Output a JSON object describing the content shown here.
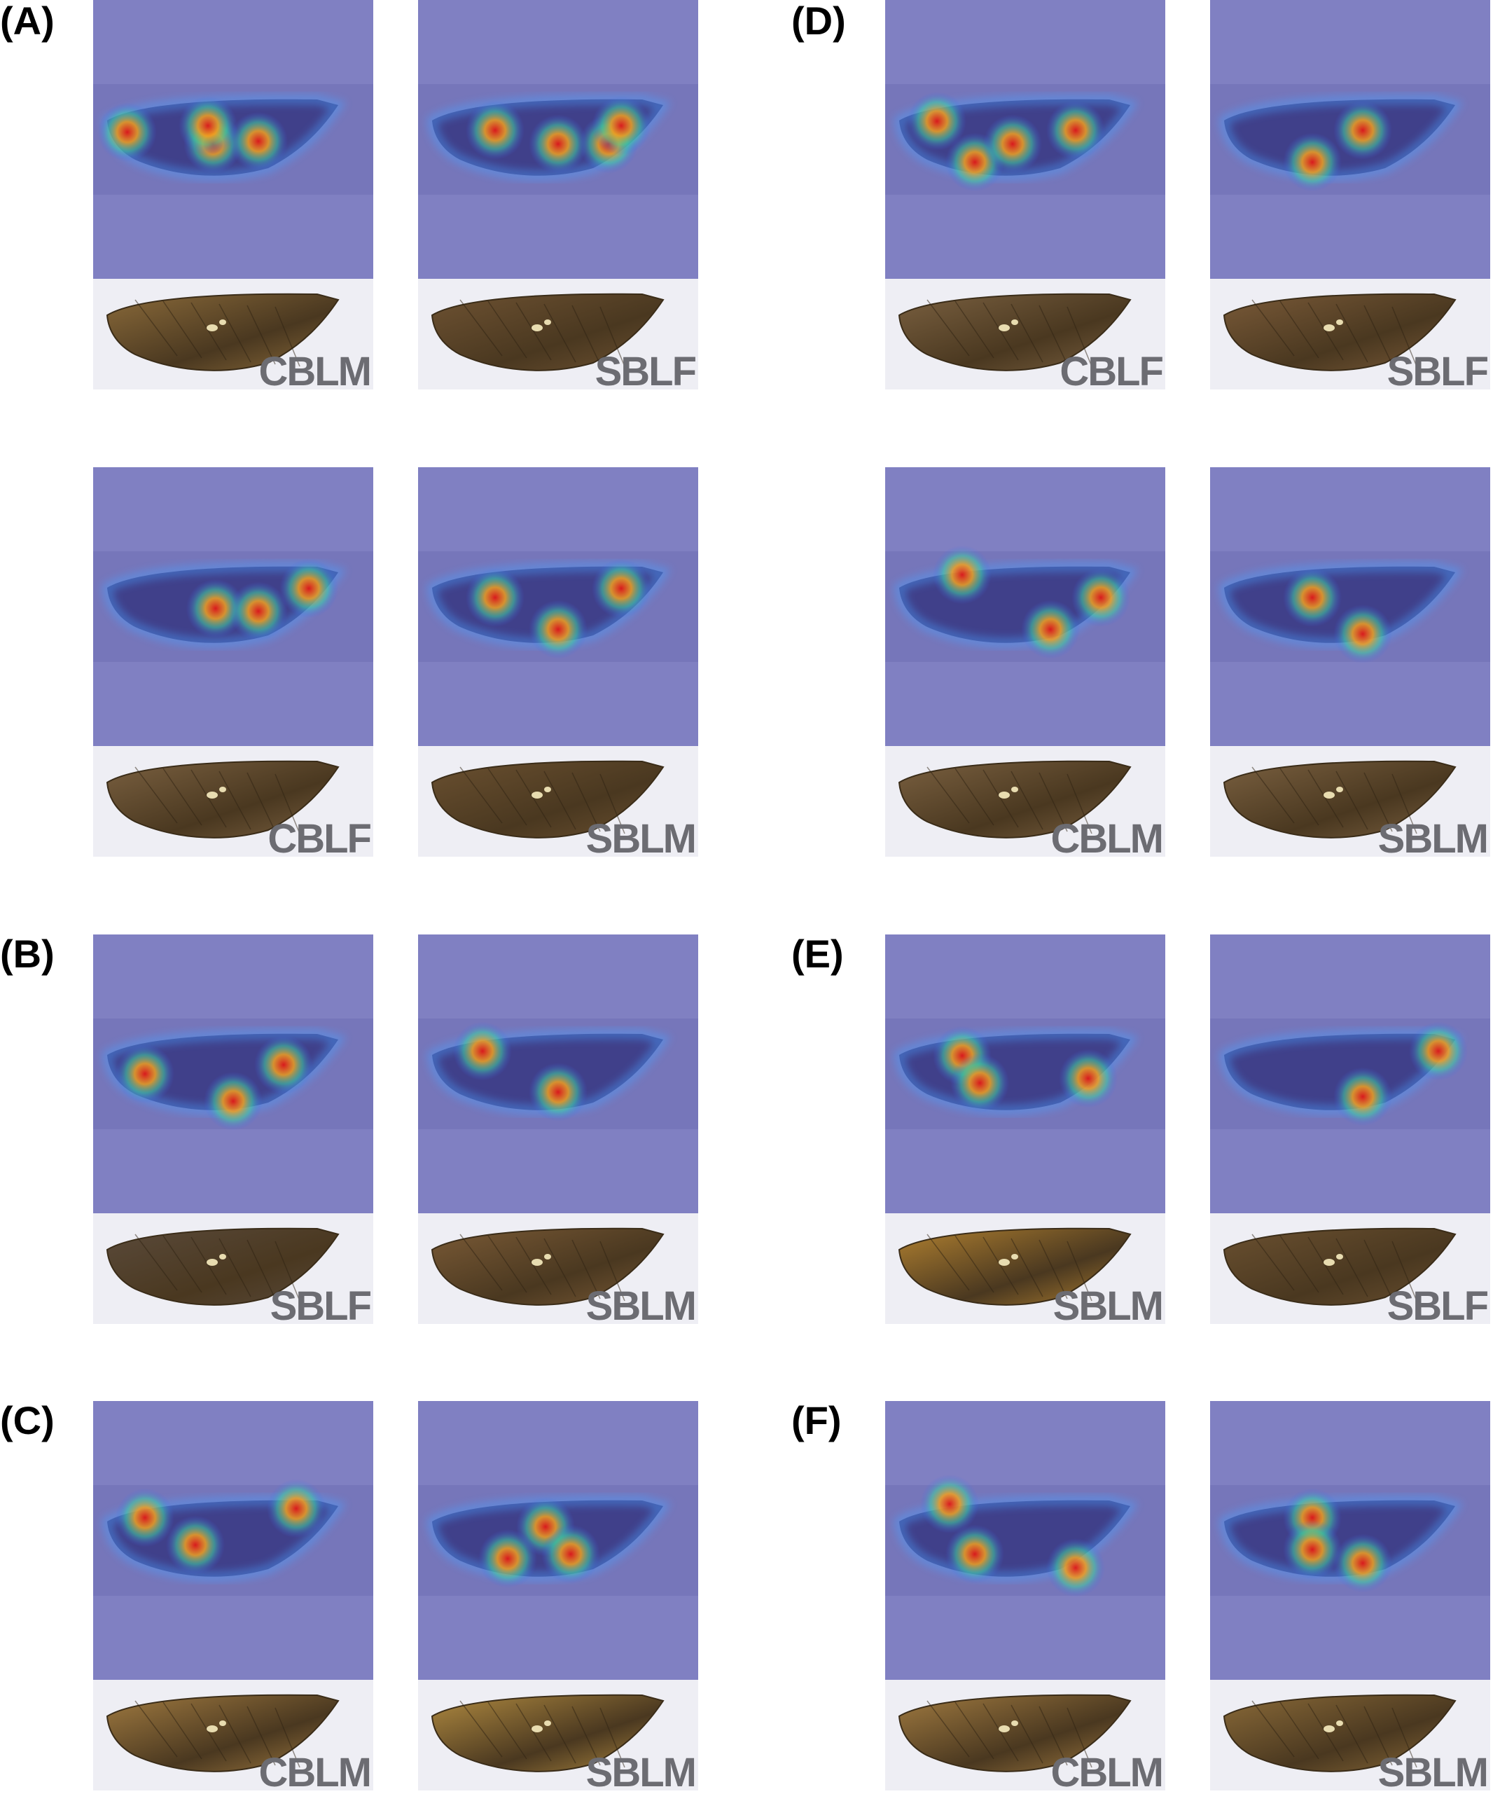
{
  "panels": [
    {
      "label": "(A)",
      "tiles": [
        {
          "caption": "CBLM",
          "wing_tone": "#8a6a3a",
          "hotspots": [
            [
              0.08,
              0.42
            ],
            [
              0.42,
              0.55
            ],
            [
              0.6,
              0.52
            ],
            [
              0.4,
              0.35
            ]
          ]
        },
        {
          "caption": "SBLF",
          "wing_tone": "#6e5232",
          "hotspots": [
            [
              0.5,
              0.55
            ],
            [
              0.7,
              0.55
            ],
            [
              0.25,
              0.4
            ],
            [
              0.75,
              0.35
            ]
          ]
        },
        {
          "caption": "CBLF",
          "wing_tone": "#7a6040",
          "hotspots": [
            [
              0.43,
              0.52
            ],
            [
              0.8,
              0.3
            ],
            [
              0.6,
              0.55
            ]
          ]
        },
        {
          "caption": "SBLM",
          "wing_tone": "#6a5030",
          "hotspots": [
            [
              0.5,
              0.75
            ],
            [
              0.75,
              0.3
            ],
            [
              0.25,
              0.4
            ]
          ]
        }
      ]
    },
    {
      "label": "(D)",
      "tiles": [
        {
          "caption": "CBLF",
          "wing_tone": "#7a6040",
          "hotspots": [
            [
              0.3,
              0.75
            ],
            [
              0.15,
              0.3
            ],
            [
              0.45,
              0.55
            ],
            [
              0.7,
              0.4
            ]
          ]
        },
        {
          "caption": "SBLF",
          "wing_tone": "#7a5a38",
          "hotspots": [
            [
              0.35,
              0.75
            ],
            [
              0.55,
              0.4
            ]
          ]
        },
        {
          "caption": "CBLM",
          "wing_tone": "#7a6040",
          "hotspots": [
            [
              0.25,
              0.15
            ],
            [
              0.6,
              0.75
            ],
            [
              0.8,
              0.4
            ]
          ]
        },
        {
          "caption": "SBLM",
          "wing_tone": "#7a6040",
          "hotspots": [
            [
              0.55,
              0.8
            ],
            [
              0.35,
              0.4
            ]
          ]
        }
      ]
    },
    {
      "label": "(B)",
      "tiles": [
        {
          "caption": "SBLF",
          "wing_tone": "#5a4a3a",
          "hotspots": [
            [
              0.15,
              0.5
            ],
            [
              0.5,
              0.8
            ],
            [
              0.7,
              0.4
            ]
          ]
        },
        {
          "caption": "SBLM",
          "wing_tone": "#7a5a36",
          "hotspots": [
            [
              0.5,
              0.7
            ],
            [
              0.2,
              0.25
            ]
          ]
        }
      ]
    },
    {
      "label": "(E)",
      "tiles": [
        {
          "caption": "SBLM",
          "wing_tone": "#b08030",
          "hotspots": [
            [
              0.25,
              0.3
            ],
            [
              0.32,
              0.6
            ],
            [
              0.75,
              0.55
            ]
          ]
        },
        {
          "caption": "SBLF",
          "wing_tone": "#6a5030",
          "hotspots": [
            [
              0.55,
              0.75
            ],
            [
              0.85,
              0.25
            ]
          ]
        }
      ]
    },
    {
      "label": "(C)",
      "tiles": [
        {
          "caption": "CBLM",
          "wing_tone": "#a07a40",
          "hotspots": [
            [
              0.35,
              0.55
            ],
            [
              0.75,
              0.15
            ],
            [
              0.15,
              0.25
            ]
          ]
        },
        {
          "caption": "SBLM",
          "wing_tone": "#b08a40",
          "hotspots": [
            [
              0.45,
              0.35
            ],
            [
              0.3,
              0.7
            ],
            [
              0.55,
              0.65
            ]
          ]
        }
      ]
    },
    {
      "label": "(F)",
      "tiles": [
        {
          "caption": "CBLM",
          "wing_tone": "#a07a40",
          "hotspots": [
            [
              0.3,
              0.65
            ],
            [
              0.2,
              0.1
            ],
            [
              0.7,
              0.8
            ]
          ]
        },
        {
          "caption": "SBLM",
          "wing_tone": "#8a6a38",
          "hotspots": [
            [
              0.55,
              0.75
            ],
            [
              0.35,
              0.25
            ],
            [
              0.35,
              0.6
            ]
          ]
        }
      ]
    }
  ]
}
